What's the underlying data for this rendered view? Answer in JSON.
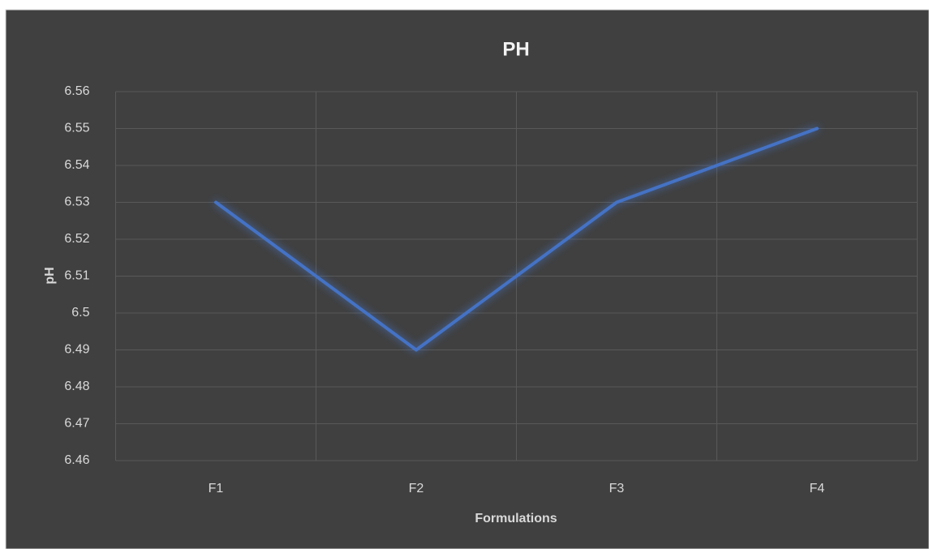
{
  "chart_data": {
    "type": "line",
    "title": "PH",
    "x_label": "Formulations",
    "y_label": "pH",
    "categories": [
      "F1",
      "F2",
      "F3",
      "F4"
    ],
    "series": [
      {
        "name": "pH",
        "color": "#4472c4",
        "values": [
          6.53,
          6.49,
          6.53,
          6.55
        ]
      }
    ],
    "ylim": [
      6.46,
      6.56
    ],
    "yticks": [
      6.46,
      6.47,
      6.48,
      6.49,
      6.5,
      6.51,
      6.52,
      6.53,
      6.54,
      6.55,
      6.56
    ],
    "grid": true
  }
}
